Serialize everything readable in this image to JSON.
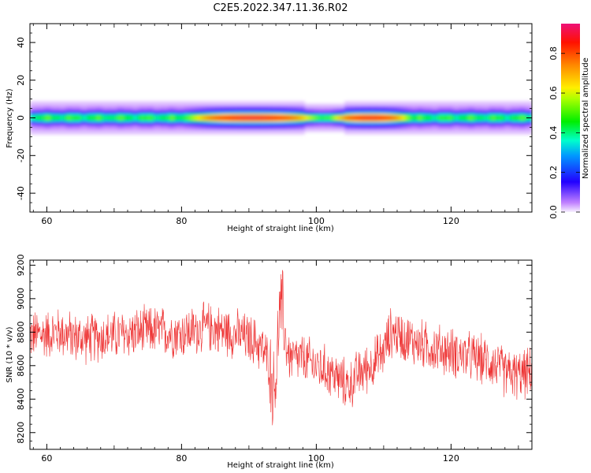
{
  "chart_data": [
    {
      "type": "heatmap",
      "title": "C2E5.2022.347.11.36.R02",
      "xlabel": "Height of straight line (km)",
      "ylabel": "Frequency (Hz)",
      "xlim": [
        57.5,
        132
      ],
      "ylim": [
        -50,
        50
      ],
      "xticks": [
        60,
        80,
        100,
        120
      ],
      "yticks": [
        -40,
        -20,
        0,
        20,
        40
      ],
      "colorbar": {
        "label": "Normalized spectral amplitude",
        "range": [
          0,
          0.95
        ],
        "ticks": [
          0.0,
          0.2,
          0.4,
          0.6,
          0.8
        ],
        "tick_labels": [
          "0.0",
          "0.2",
          "0.4",
          "0.6",
          "0.8"
        ]
      },
      "band": {
        "center_frequency_hz": 0,
        "half_width_hz": 4,
        "peak_regions": [
          {
            "x_range": [
              84,
              97
            ],
            "amplitude": 0.9
          },
          {
            "x_range": [
              104,
              112
            ],
            "amplitude": 0.88
          }
        ],
        "background_amplitude": 0.45
      }
    },
    {
      "type": "line",
      "xlabel": "Height of straight line (km)",
      "ylabel": "SNR (10 * v/v)",
      "xlim": [
        57.5,
        132
      ],
      "ylim": [
        8100,
        9230
      ],
      "xticks": [
        60,
        80,
        100,
        120
      ],
      "yticks": [
        8200,
        8400,
        8600,
        8800,
        9000,
        9200
      ],
      "series": [
        {
          "color": "#ee3333",
          "noise_amplitude": 150,
          "x": [
            57.5,
            60,
            62,
            64,
            66,
            68,
            70,
            72,
            74,
            76,
            78,
            80,
            82,
            84,
            86,
            88,
            90,
            91,
            92,
            93,
            93.6,
            94,
            94.5,
            95,
            95.5,
            96,
            97,
            98,
            100,
            102,
            104,
            105,
            106,
            108,
            110,
            111,
            112,
            114,
            116,
            118,
            120,
            122,
            124,
            126,
            128,
            130,
            132
          ],
          "y": [
            8780,
            8790,
            8800,
            8770,
            8760,
            8770,
            8780,
            8790,
            8800,
            8810,
            8800,
            8790,
            8810,
            8830,
            8810,
            8790,
            8760,
            8740,
            8700,
            8620,
            8450,
            8520,
            8900,
            8950,
            8720,
            8650,
            8640,
            8640,
            8600,
            8560,
            8500,
            8480,
            8540,
            8600,
            8680,
            8800,
            8790,
            8750,
            8720,
            8700,
            8680,
            8660,
            8640,
            8620,
            8560,
            8540,
            8560
          ]
        }
      ]
    }
  ]
}
